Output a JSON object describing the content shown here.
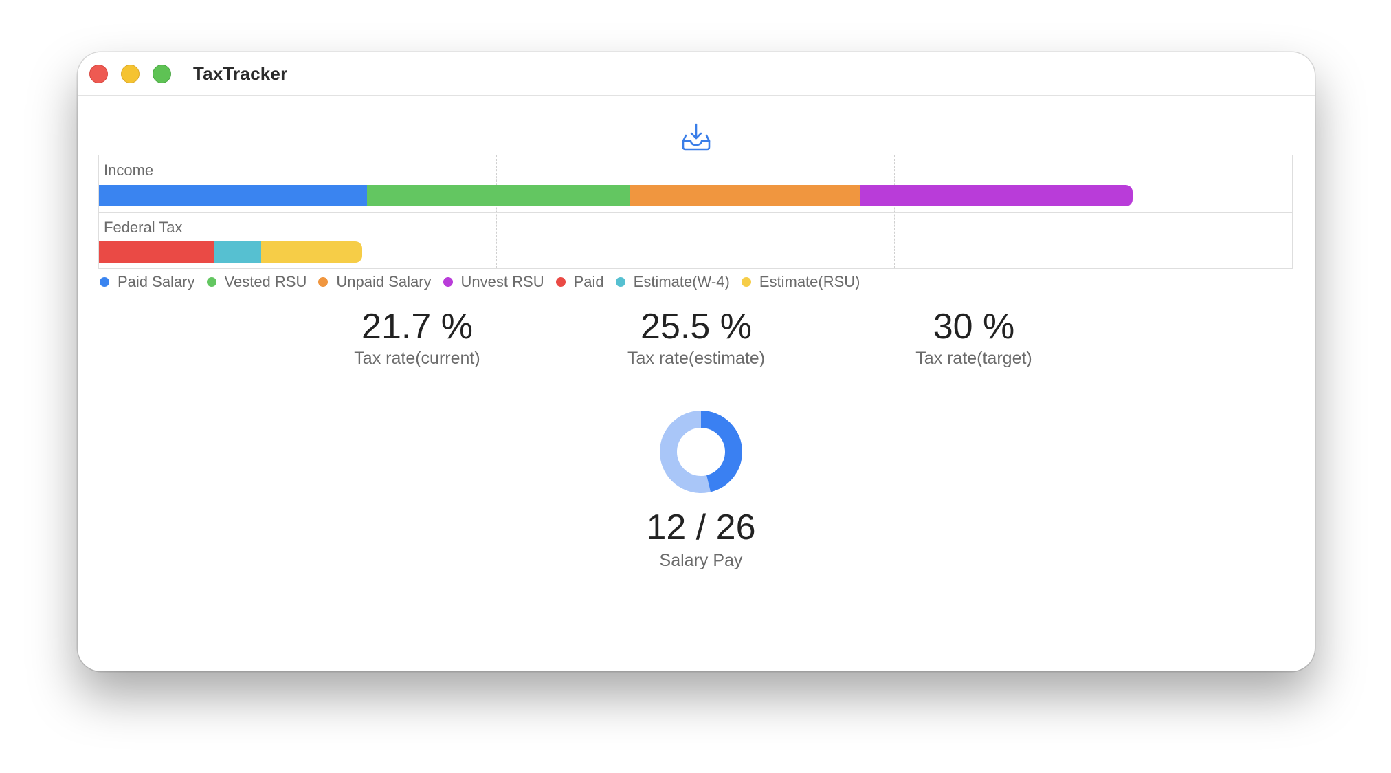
{
  "window": {
    "title": "TaxTracker"
  },
  "toolbar": {
    "import_icon": "tray-arrow-down-icon"
  },
  "chart_data": {
    "type": "bar",
    "orientation": "horizontal",
    "stacked": true,
    "categories": [
      "Income",
      "Federal Tax"
    ],
    "series": [
      {
        "name": "Paid Salary",
        "category": "Income",
        "value": 0.225,
        "color": "#3a84f0"
      },
      {
        "name": "Vested RSU",
        "category": "Income",
        "value": 0.22,
        "color": "#63c661"
      },
      {
        "name": "Unpaid Salary",
        "category": "Income",
        "value": 0.193,
        "color": "#f0963f"
      },
      {
        "name": "Unvest RSU",
        "category": "Income",
        "value": 0.229,
        "color": "#b93cd9"
      },
      {
        "name": "Paid",
        "category": "Federal Tax",
        "value": 0.096,
        "color": "#ea4a45"
      },
      {
        "name": "Estimate(W-4)",
        "category": "Federal Tax",
        "value": 0.04,
        "color": "#56c0d1"
      },
      {
        "name": "Estimate(RSU)",
        "category": "Federal Tax",
        "value": 0.085,
        "color": "#f6cd47"
      }
    ],
    "xlim": [
      0,
      1
    ],
    "grid": true,
    "legend_position": "bottom-left"
  },
  "legend": [
    {
      "label": "Paid Salary",
      "color": "#3a84f0"
    },
    {
      "label": "Vested RSU",
      "color": "#63c661"
    },
    {
      "label": "Unpaid Salary",
      "color": "#f0963f"
    },
    {
      "label": "Unvest RSU",
      "color": "#b93cd9"
    },
    {
      "label": "Paid",
      "color": "#ea4a45"
    },
    {
      "label": "Estimate(W-4)",
      "color": "#56c0d1"
    },
    {
      "label": "Estimate(RSU)",
      "color": "#f6cd47"
    }
  ],
  "stats": [
    {
      "value": "21.7 %",
      "label": "Tax rate(current)"
    },
    {
      "value": "25.5 %",
      "label": "Tax rate(estimate)"
    },
    {
      "value": "30 %",
      "label": "Tax rate(target)"
    }
  ],
  "salary": {
    "paid": 12,
    "total": 26,
    "count_text": "12 / 26",
    "label": "Salary Pay",
    "progress_color": "#3a80f2",
    "track_color": "#a9c6f8"
  }
}
